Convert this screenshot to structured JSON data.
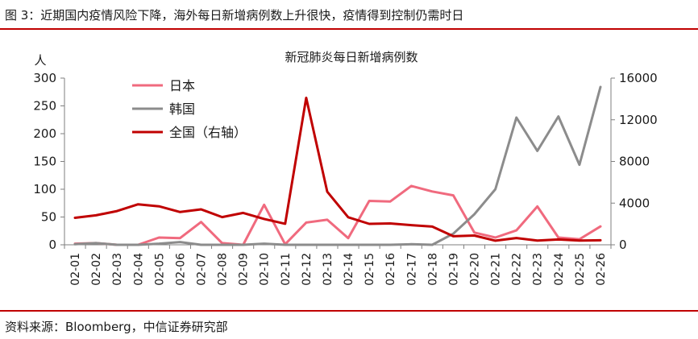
{
  "figure": {
    "title": "图 3：近期国内疫情风险下降，海外每日新增病例数上升很快，疫情得到控制仍需时日",
    "source": "资料来源：Bloomberg，中信证券研究部",
    "rule_color": "#c00000"
  },
  "chart_data": {
    "type": "line",
    "title": "新冠肺炎每日新增病例数",
    "ylabel_left": "人",
    "ylim_left": [
      0,
      300
    ],
    "ylim_right": [
      0,
      16000
    ],
    "yticks_left": [
      0,
      50,
      100,
      150,
      200,
      250,
      300
    ],
    "yticks_right": [
      0,
      4000,
      8000,
      12000,
      16000
    ],
    "ytick_labels_left": [
      "0",
      "50",
      "100",
      "150",
      "200",
      "250",
      "300"
    ],
    "ytick_labels_right": [
      "0",
      "4000",
      "8000",
      "12000",
      "16000"
    ],
    "categories": [
      "02-01",
      "02-02",
      "02-03",
      "02-04",
      "02-05",
      "02-06",
      "02-07",
      "02-08",
      "02-09",
      "02-10",
      "02-11",
      "02-12",
      "02-13",
      "02-14",
      "02-15",
      "02-16",
      "02-17",
      "02-18",
      "02-19",
      "02-20",
      "02-21",
      "02-22",
      "02-23",
      "02-24",
      "02-25",
      "02-26"
    ],
    "grid": false,
    "legend_position": "top-left",
    "series": [
      {
        "name": "日本",
        "axis": "left",
        "color": "#f06a7e",
        "values": [
          2,
          3,
          0,
          0,
          13,
          12,
          41,
          3,
          0,
          72,
          1,
          40,
          45,
          12,
          79,
          78,
          106,
          96,
          89,
          22,
          13,
          26,
          69,
          13,
          10,
          33
        ]
      },
      {
        "name": "韩国",
        "axis": "left",
        "color": "#8c8c8c",
        "values": [
          1,
          3,
          0,
          0,
          2,
          5,
          0,
          0,
          0,
          2,
          0,
          0,
          0,
          0,
          0,
          0,
          1,
          0,
          20,
          55,
          100,
          229,
          169,
          231,
          144,
          284
        ]
      },
      {
        "name": "全国（右轴）",
        "axis": "right",
        "color": "#c00000",
        "values": [
          2590,
          2829,
          3235,
          3887,
          3694,
          3143,
          3399,
          2656,
          3062,
          2478,
          2015,
          14108,
          5090,
          2641,
          2009,
          2048,
          1886,
          1749,
          820,
          889,
          397,
          648,
          409,
          508,
          406,
          433
        ]
      }
    ]
  }
}
